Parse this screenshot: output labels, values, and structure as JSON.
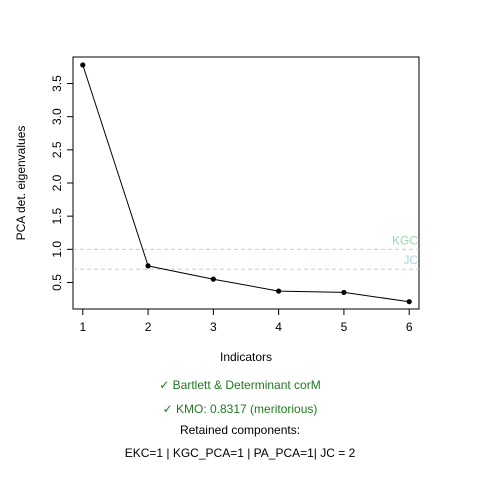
{
  "chart_data": {
    "type": "line",
    "xlabel": "Indicators",
    "ylabel": "PCA det. eigenvalues",
    "x": [
      1,
      2,
      3,
      4,
      5,
      6
    ],
    "values": [
      3.78,
      0.75,
      0.55,
      0.37,
      0.35,
      0.21
    ],
    "xlim": [
      0.85,
      6.15
    ],
    "ylim": [
      0.1,
      3.9
    ],
    "xticks": [
      "1",
      "2",
      "3",
      "4",
      "5",
      "6"
    ],
    "yticks": [
      "0.5",
      "1.0",
      "1.5",
      "2.0",
      "2.5",
      "3.0",
      "3.5"
    ],
    "reference_lines": [
      {
        "label": "KGC",
        "value": 1.0,
        "color": "#a8e0b8",
        "label_color": "#9bd9a8"
      },
      {
        "label": "JC",
        "value": 0.7,
        "color": "#a8d8e8",
        "label_color": "#a8d8e8"
      }
    ],
    "line_color": "#000000"
  },
  "notes": {
    "bartlett": "✓ Bartlett & Determinant corM",
    "kmo": "✓ KMO: 0.8317 (meritorious)",
    "retained_title": "Retained components:",
    "retained_values": "EKC=1 | KGC_PCA=1 | PA_PCA=1| JC = 2",
    "ok_color": "#1e7b1e"
  }
}
